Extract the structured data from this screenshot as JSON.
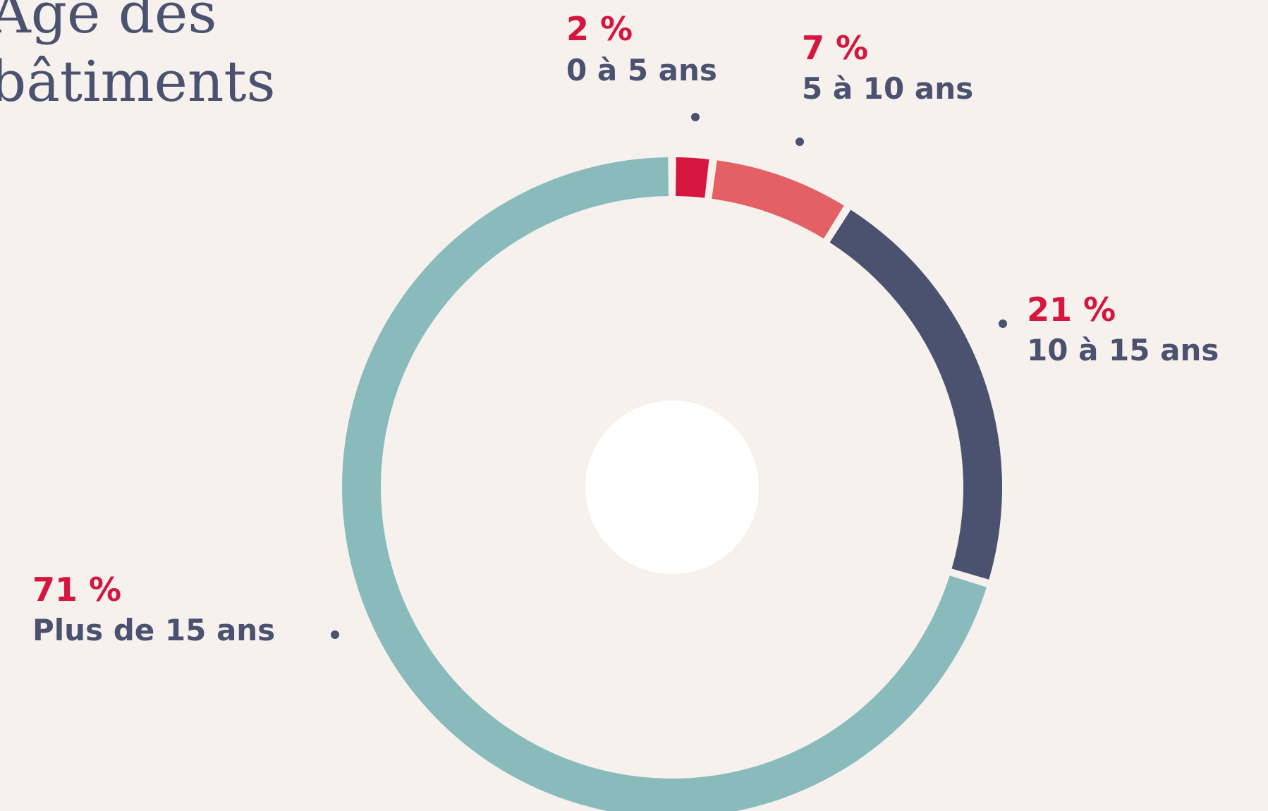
{
  "chart_data": {
    "type": "donut",
    "title": [
      "Âge des",
      "bâtiments"
    ],
    "categories": [
      "0 à 5 ans",
      "5 à 10 ans",
      "10 à 15 ans",
      "Plus de 15 ans"
    ],
    "values": [
      2,
      7,
      21,
      71
    ],
    "value_labels": [
      "2 %",
      "7 %",
      "21 %",
      "71 %"
    ],
    "colors": [
      "#d5173f",
      "#e36065",
      "#4a5270",
      "#89bbbd"
    ]
  }
}
